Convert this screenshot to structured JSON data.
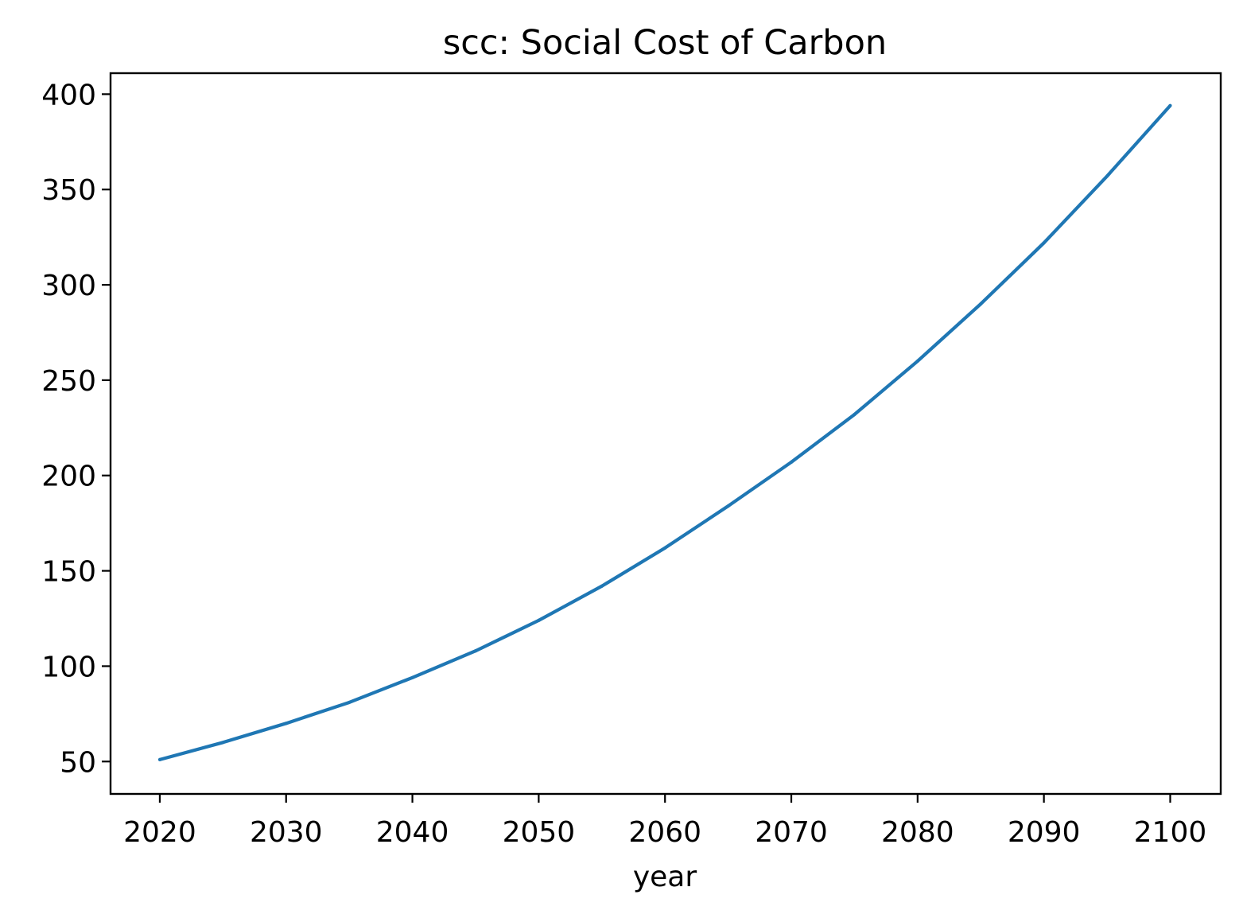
{
  "chart_data": {
    "type": "line",
    "title": "scc: Social Cost of Carbon",
    "xlabel": "year",
    "ylabel": "",
    "x": [
      2020,
      2025,
      2030,
      2035,
      2040,
      2045,
      2050,
      2055,
      2060,
      2065,
      2070,
      2075,
      2080,
      2085,
      2090,
      2095,
      2100
    ],
    "series": [
      {
        "values": [
          51,
          60,
          70,
          81,
          94,
          108,
          124,
          142,
          162,
          184,
          207,
          232,
          260,
          290,
          322,
          357,
          394
        ],
        "color": "#1f77b4"
      }
    ],
    "xlim": [
      2016.1,
      2104
    ],
    "ylim": [
      33,
      411
    ],
    "xticks": [
      2020,
      2030,
      2040,
      2050,
      2060,
      2070,
      2080,
      2090,
      2100
    ],
    "yticks": [
      50,
      100,
      150,
      200,
      250,
      300,
      350,
      400
    ],
    "grid": false,
    "legend": "none"
  }
}
